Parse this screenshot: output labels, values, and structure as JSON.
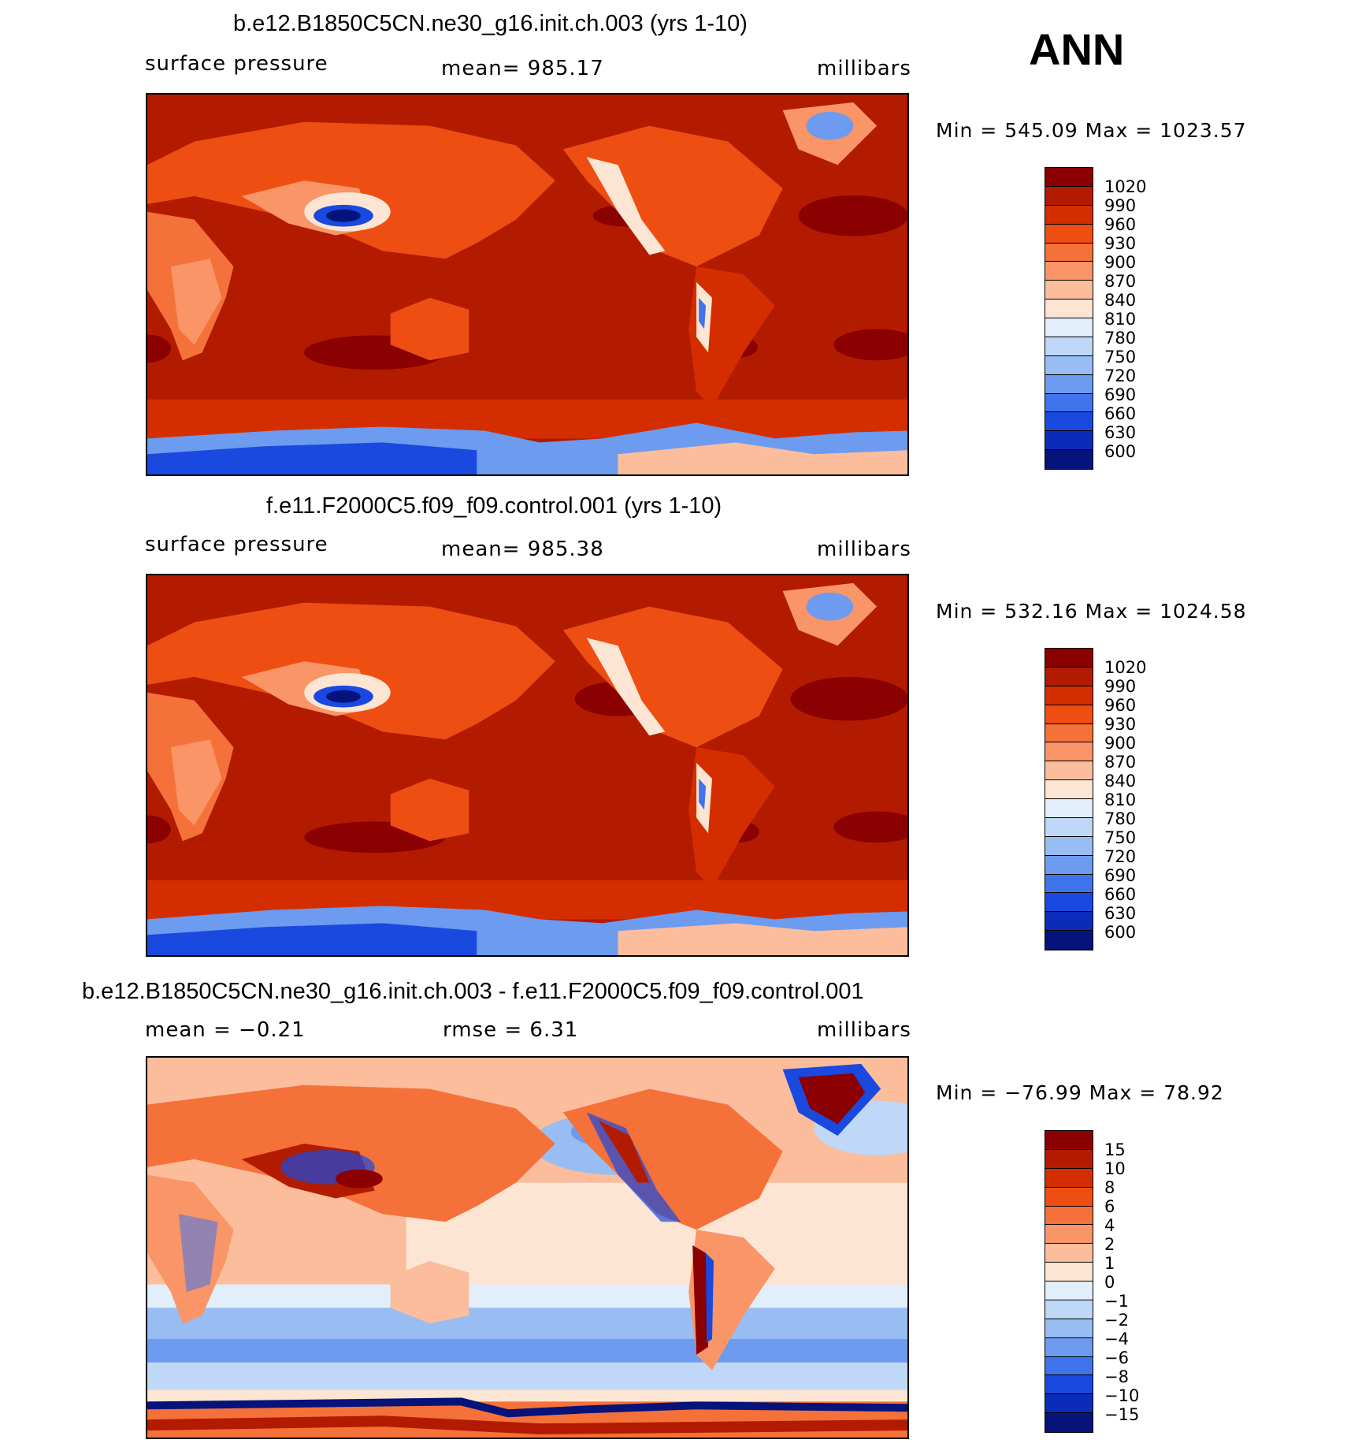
{
  "season": "ANN",
  "panels": [
    {
      "title": "b.e12.B1850C5CN.ne30_g16.init.ch.003 (yrs 1-10)",
      "left_label": "surface pressure",
      "center_label": "mean=  985.17",
      "right_label": "millibars",
      "minmax": "Min  =  545.09  Max  =  1023.57",
      "colorbar_labels": [
        "1020",
        "990",
        "960",
        "930",
        "900",
        "870",
        "840",
        "810",
        "780",
        "750",
        "720",
        "690",
        "660",
        "630",
        "600"
      ]
    },
    {
      "title": "f.e11.F2000C5.f09_f09.control.001 (yrs 1-10)",
      "left_label": "surface pressure",
      "center_label": "mean=  985.38",
      "right_label": "millibars",
      "minmax": "Min  =  532.16  Max  =  1024.58",
      "colorbar_labels": [
        "1020",
        "990",
        "960",
        "930",
        "900",
        "870",
        "840",
        "810",
        "780",
        "750",
        "720",
        "690",
        "660",
        "630",
        "600"
      ]
    },
    {
      "title": "b.e12.B1850C5CN.ne30_g16.init.ch.003 - f.e11.F2000C5.f09_f09.control.001",
      "left_label": "mean  =    −0.21",
      "center_label": "rmse  =      6.31",
      "right_label": "millibars",
      "minmax": "Min  =  −76.99  Max  =    78.92",
      "colorbar_labels": [
        "15",
        "10",
        "8",
        "6",
        "4",
        "2",
        "1",
        "0",
        "−1",
        "−2",
        "−4",
        "−6",
        "−8",
        "−10",
        "−15"
      ]
    }
  ],
  "colors": {
    "abs_scale": [
      "#8b0000",
      "#b31b00",
      "#d42e00",
      "#ee4e12",
      "#f5713a",
      "#f99567",
      "#fbbd9c",
      "#fde5d3",
      "#e2eefa",
      "#c0d8f7",
      "#97bdf2",
      "#6c9bef",
      "#3f74ec",
      "#1a49df",
      "#0a2cb8",
      "#05137a"
    ],
    "diff_scale": [
      "#8b0000",
      "#b31b00",
      "#d42e00",
      "#ee4e12",
      "#f5713a",
      "#f99567",
      "#fbbd9c",
      "#fde5d3",
      "#e2eefa",
      "#c0d8f7",
      "#97bdf2",
      "#6c9bef",
      "#3f74ec",
      "#1a49df",
      "#0a2cb8",
      "#05137a"
    ]
  }
}
